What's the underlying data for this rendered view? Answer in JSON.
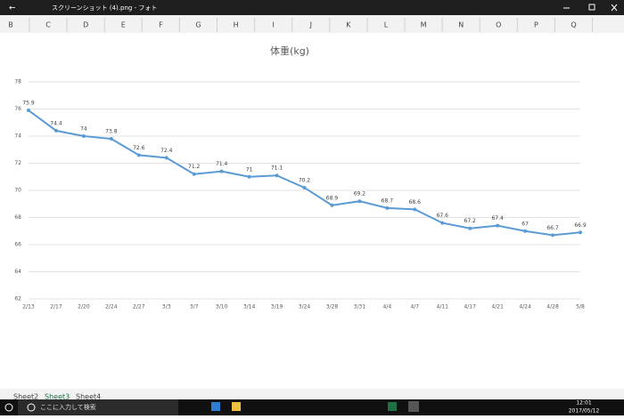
{
  "window": {
    "title": "スクリーンショット (4).png - フォト"
  },
  "columns": [
    "B",
    "C",
    "D",
    "E",
    "F",
    "G",
    "H",
    "I",
    "J",
    "K",
    "L",
    "M",
    "N",
    "O",
    "P",
    "Q"
  ],
  "sheets": [
    "Sheet2",
    "Sheet3",
    "Sheet4"
  ],
  "taskbar": {
    "search": "ここに入力して検索",
    "time": "12:01",
    "date": "2017/05/12"
  },
  "chart_data": {
    "type": "line",
    "title": "体重(kg)",
    "categories": [
      "2/13",
      "2/17",
      "2/20",
      "2/24",
      "2/27",
      "3/3",
      "3/7",
      "3/10",
      "3/14",
      "3/19",
      "3/24",
      "3/28",
      "3/31",
      "4/4",
      "4/7",
      "4/11",
      "4/17",
      "4/21",
      "4/24",
      "4/28",
      "5/8"
    ],
    "values": [
      75.9,
      74.4,
      74,
      73.8,
      72.6,
      72.4,
      71.2,
      71.4,
      71,
      71.1,
      70.2,
      68.9,
      69.2,
      68.7,
      68.6,
      67.6,
      67.2,
      67.4,
      67,
      66.7,
      66.9
    ],
    "color": "#5b9bd5",
    "ylim": [
      62,
      78
    ],
    "yticks": [
      62,
      64,
      66,
      68,
      70,
      72,
      74,
      76,
      78
    ],
    "grid": true
  }
}
